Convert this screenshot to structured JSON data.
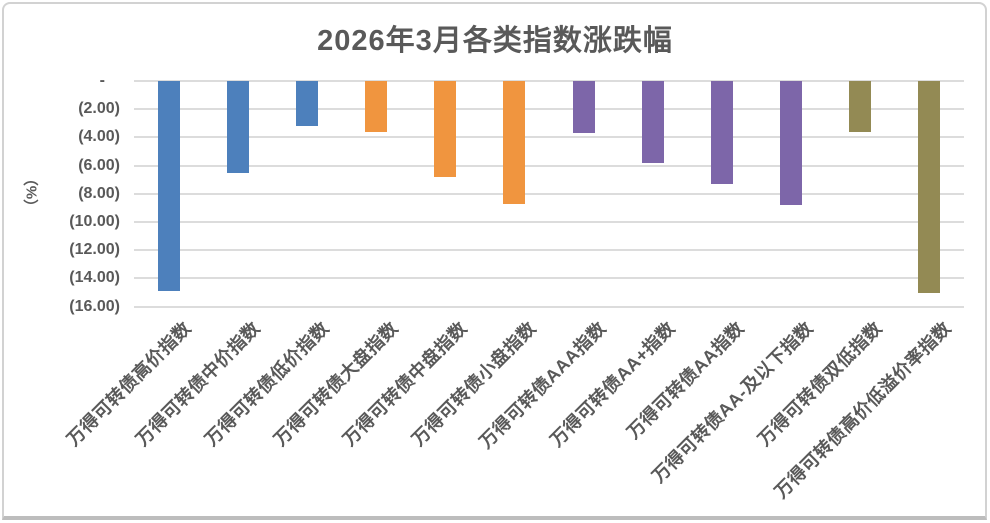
{
  "chart_data": {
    "type": "bar",
    "title": "2026年3月各类指数涨跌幅",
    "ylabel": "（%）",
    "xlabel": "",
    "ylim": [
      -16,
      0
    ],
    "ytick_interval": 2,
    "grid": true,
    "legend": "none",
    "bar_orientation": "vertical",
    "yticks": [
      {
        "value": 0,
        "label": "-"
      },
      {
        "value": -2,
        "label": "(2.00)"
      },
      {
        "value": -4,
        "label": "(4.00)"
      },
      {
        "value": -6,
        "label": "(6.00)"
      },
      {
        "value": -8,
        "label": "(8.00)"
      },
      {
        "value": -10,
        "label": "(10.00)"
      },
      {
        "value": -12,
        "label": "(12.00)"
      },
      {
        "value": -14,
        "label": "(14.00)"
      },
      {
        "value": -16,
        "label": "(16.00)"
      }
    ],
    "categories": [
      "万得可转债高价指数",
      "万得可转债中价指数",
      "万得可转债低价指数",
      "万得可转债大盘指数",
      "万得可转债中盘指数",
      "万得可转债小盘指数",
      "万得可转债AAA指数",
      "万得可转债AA+指数",
      "万得可转债AA指数",
      "万得可转债AA-及以下指数",
      "万得可转债双低指数",
      "万得可转债高价低溢价率指数"
    ],
    "values": [
      -14.9,
      -6.5,
      -3.2,
      -3.6,
      -6.8,
      -8.7,
      -3.7,
      -5.8,
      -7.3,
      -8.8,
      -3.6,
      -15.0
    ],
    "bar_colors": [
      "#4D80BC",
      "#4D80BC",
      "#4D80BC",
      "#F0953F",
      "#F0953F",
      "#F0953F",
      "#7D66A9",
      "#7D66A9",
      "#7D66A9",
      "#7D66A9",
      "#938A54",
      "#938A54"
    ],
    "palette": {
      "blue": "#4D80BC",
      "orange": "#F0953F",
      "purple": "#7D66A9",
      "olive": "#938A54"
    },
    "colors_misc": {
      "title_text": "#595959",
      "axis_text": "#595959",
      "gridline": "#dcdcdc",
      "frame_border": "#d2d2d2",
      "frame_bottom_border": "#bdbdbd",
      "background": "#ffffff"
    }
  }
}
